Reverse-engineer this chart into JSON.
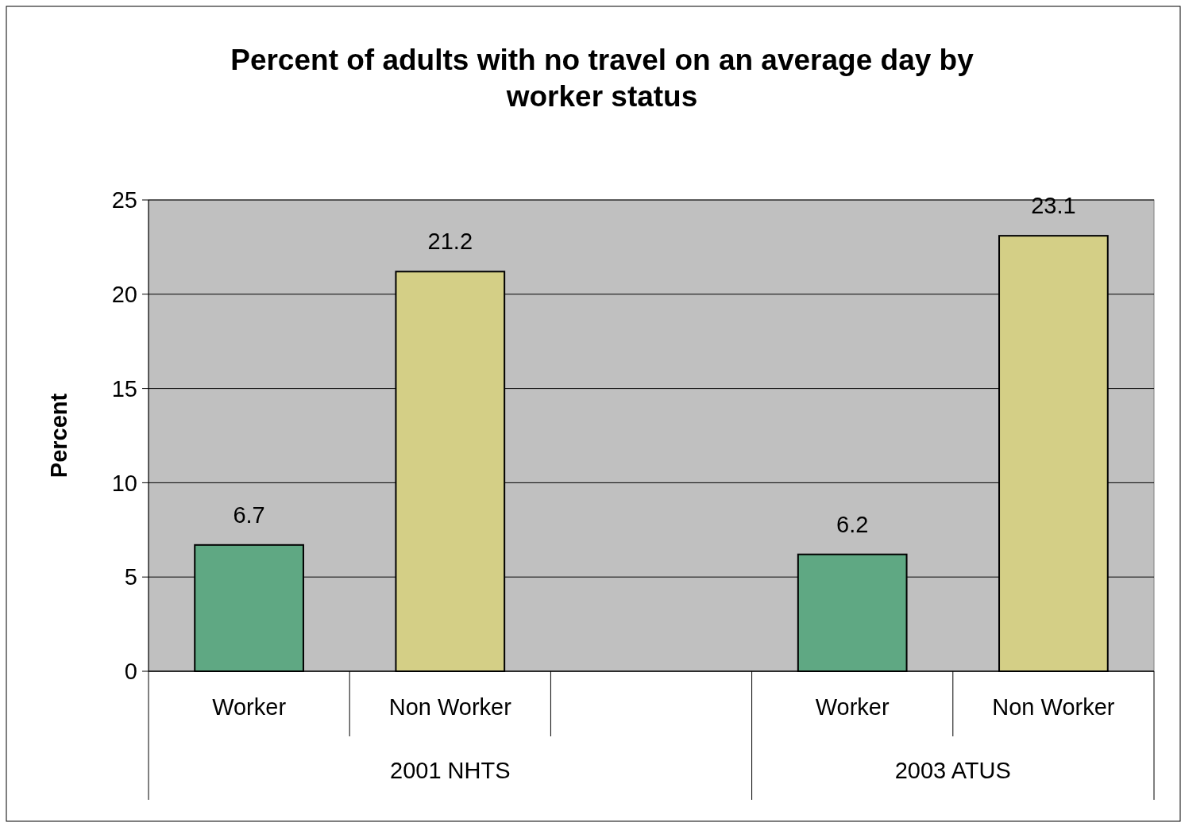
{
  "chart_data": {
    "type": "bar",
    "title": "Percent of adults with no travel on an average day by worker status",
    "ylabel": "Percent",
    "categories": [
      "Worker",
      "Non Worker",
      null,
      "Worker",
      "Non Worker"
    ],
    "values": [
      6.7,
      21.2,
      null,
      6.2,
      23.1
    ],
    "colors": [
      "#5fa883",
      "#d4cf86",
      null,
      "#5fa883",
      "#d4cf86"
    ],
    "ylim": [
      0,
      25
    ],
    "yticks": [
      0,
      5,
      10,
      15,
      20,
      25
    ],
    "grid": "y",
    "data_labels": true,
    "annotations": [
      "2001 NHTS",
      "2003 ATUS"
    ]
  }
}
